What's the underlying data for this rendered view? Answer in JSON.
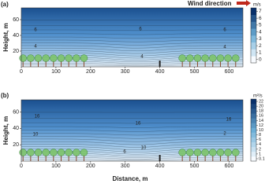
{
  "chart_data": [
    {
      "type": "contour",
      "panel": "(a)",
      "annotation": "Wind direction",
      "ylabel": "Height, m",
      "xlim": [
        0,
        640
      ],
      "xticks": [
        0,
        100,
        200,
        300,
        400,
        500,
        600
      ],
      "ylim": [
        0,
        75
      ],
      "yticks": [
        20,
        40,
        60
      ],
      "colorbar": {
        "label": "m/s",
        "ticks": [
          0,
          1,
          2,
          3,
          4,
          5,
          6,
          7
        ],
        "colormap": [
          "#f7fbff",
          "#6baed6",
          "#08306b"
        ]
      },
      "contour_labels": [
        6,
        6,
        6,
        4,
        4,
        4
      ]
    },
    {
      "type": "contour",
      "panel": "(b)",
      "ylabel": "Height, m",
      "xlabel": "Distance, m",
      "xlim": [
        0,
        640
      ],
      "xticks": [
        0,
        100,
        200,
        300,
        400,
        500,
        600
      ],
      "ylim": [
        0,
        75
      ],
      "yticks": [
        20,
        40,
        60
      ],
      "colorbar": {
        "label": "m²/s",
        "ticks": [
          0.1,
          1,
          2,
          4,
          6,
          8,
          10,
          12,
          14,
          16,
          18,
          20,
          22
        ],
        "colormap": [
          "#f7fbff",
          "#6baed6",
          "#08306b"
        ]
      },
      "contour_labels": [
        16,
        16,
        16,
        10,
        10,
        6,
        2
      ]
    }
  ]
}
